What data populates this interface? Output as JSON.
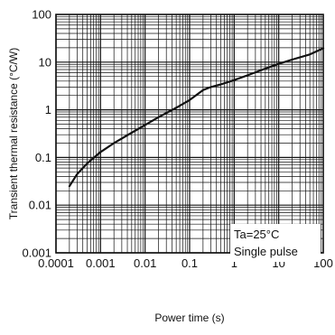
{
  "chart_data": {
    "type": "line",
    "x_scale": "log",
    "y_scale": "log",
    "xlabel": "Power time (s)",
    "ylabel": "Transient thermal resistance (°C/W)",
    "xlim": [
      0.0001,
      100
    ],
    "ylim": [
      0.001,
      100
    ],
    "x_tick_labels": [
      "0.0001",
      "0.001",
      "0.01",
      "0.1",
      "1",
      "10",
      "100"
    ],
    "y_tick_labels": [
      "0.001",
      "0.01",
      "0.1",
      "1",
      "10",
      "100"
    ],
    "grid": true,
    "series": [
      {
        "x": [
          0.0002,
          0.0003,
          0.0005,
          0.001,
          0.002,
          0.005,
          0.01,
          0.02,
          0.05,
          0.1,
          0.2,
          0.3,
          0.5,
          1,
          2,
          5,
          10,
          20,
          50,
          100
        ],
        "y": [
          0.025,
          0.045,
          0.075,
          0.13,
          0.2,
          0.33,
          0.48,
          0.7,
          1.1,
          1.6,
          2.6,
          3.0,
          3.4,
          4.2,
          5.3,
          7.3,
          9.2,
          11.3,
          14.5,
          19.5
        ]
      }
    ],
    "annotation": {
      "lines": [
        "Ta=25°C",
        "Single pulse"
      ],
      "placement": "bottom-right"
    }
  }
}
